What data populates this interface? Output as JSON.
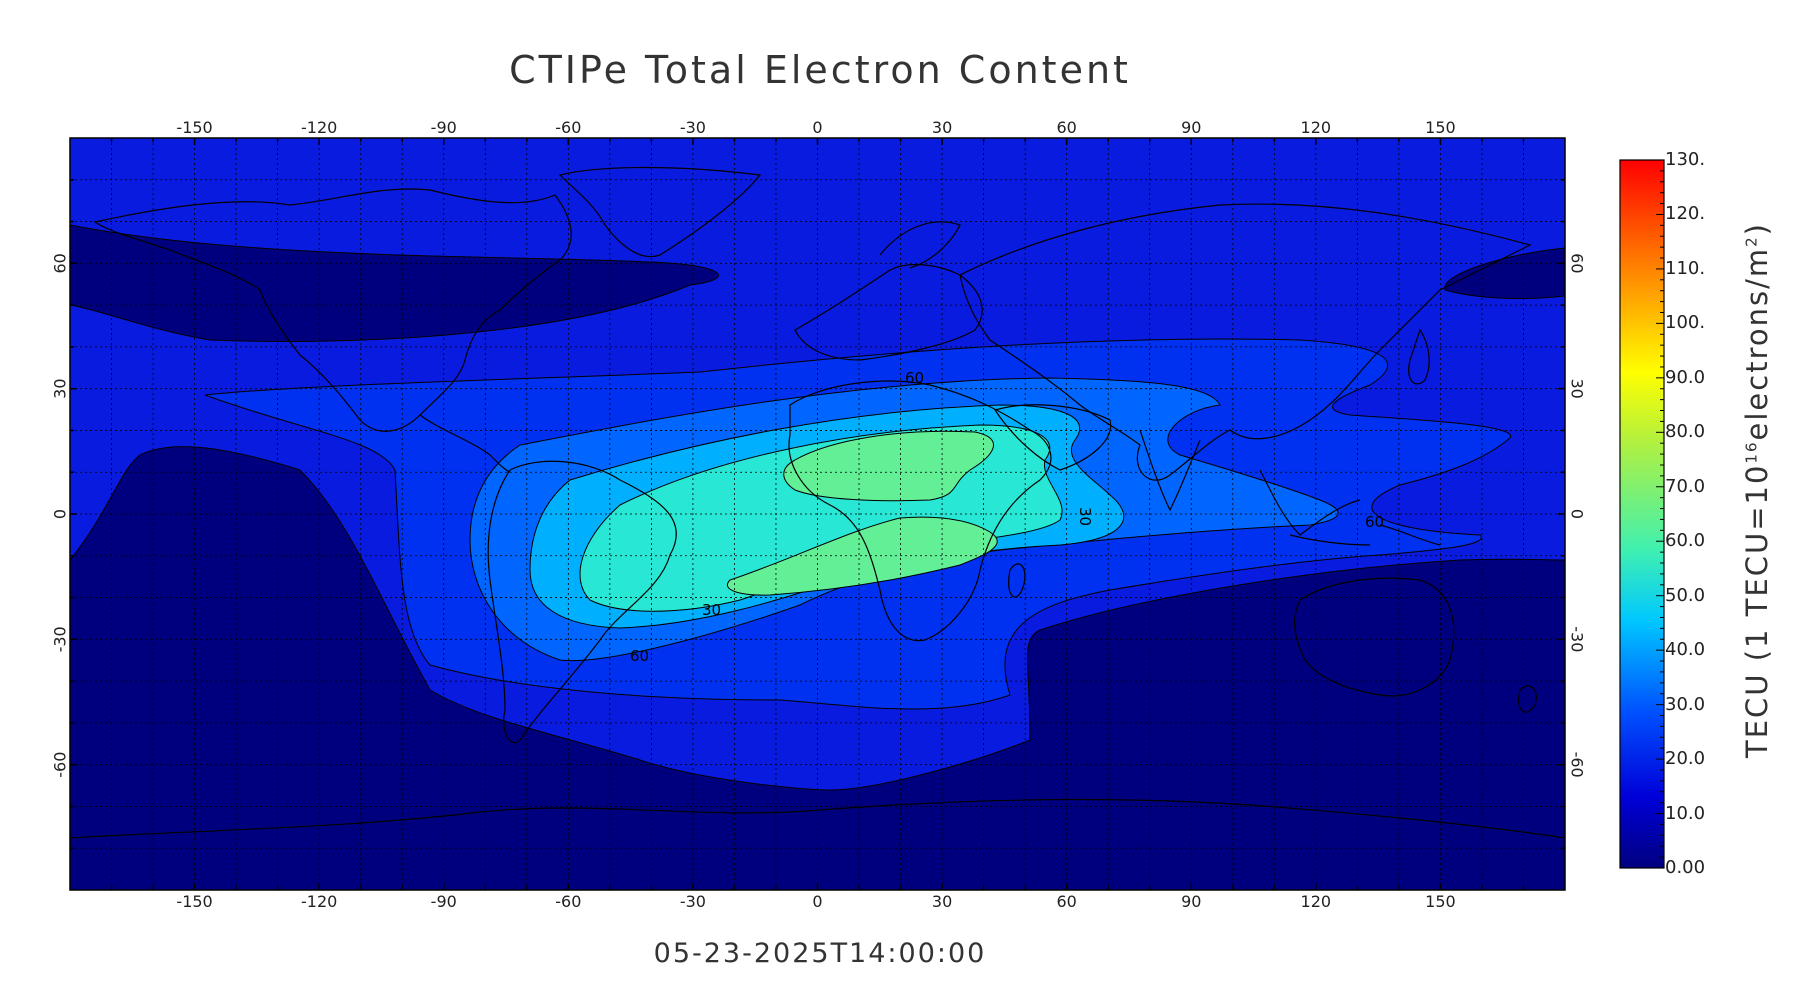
{
  "title": "CTIPe Total Electron Content",
  "timestamp": "05-23-2025T14:00:00",
  "map": {
    "projection": "cylindrical equidistant",
    "lon_range": [
      -180,
      180
    ],
    "lat_range": [
      -90,
      90
    ],
    "grid": true,
    "lon_ticks": [
      "-150",
      "-120",
      "-90",
      "-60",
      "-30",
      "0",
      "30",
      "60",
      "90",
      "120",
      "150"
    ],
    "lat_ticks": [
      "60",
      "30",
      "0",
      "-30",
      "-60"
    ],
    "contour_labels": [
      "60",
      "30",
      "60",
      "30",
      "60"
    ],
    "coastlines": true
  },
  "colorbar": {
    "labels": [
      "130.",
      "120.",
      "110.",
      "100.",
      "90.0",
      "80.0",
      "70.0",
      "60.0",
      "50.0",
      "40.0",
      "30.0",
      "20.0",
      "10.0",
      "0.00"
    ],
    "min": 0,
    "max": 130,
    "title_prefix": "TECU (1 TECU=10",
    "title_exp": "16",
    "title_mid": "electrons/m",
    "title_exp2": "2",
    "title_suffix": ")"
  },
  "colors": {
    "level_0_10": "#00007f",
    "level_10_20": "#0a1be0",
    "level_20_30": "#0030f0",
    "level_30_40": "#0066ff",
    "level_40_50": "#00b0ff",
    "level_50_60": "#28e7d5",
    "level_60_70": "#63ef96"
  }
}
